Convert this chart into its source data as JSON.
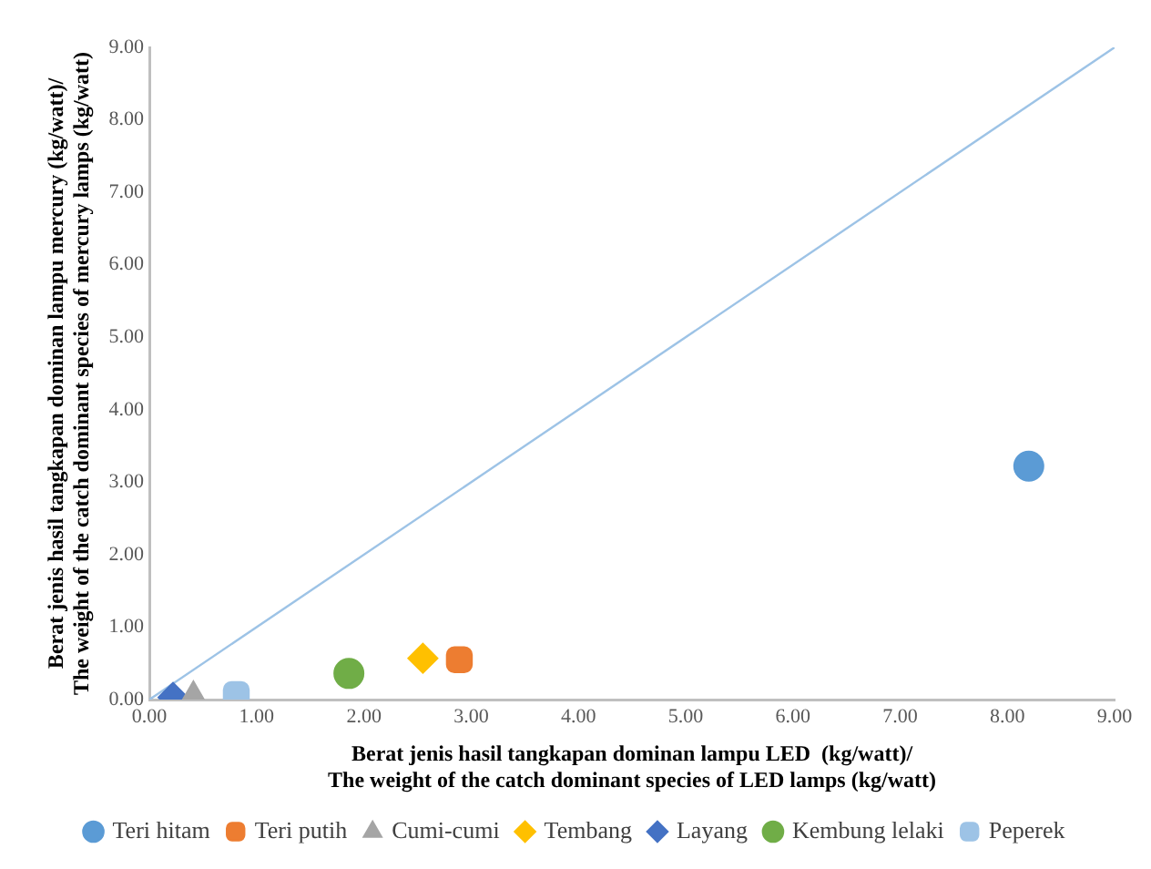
{
  "chart_data": {
    "type": "scatter",
    "xlabel": "Berat jenis hasil tangkapan dominan lampu LED  (kg/watt)/\nThe weight of the catch dominant species of LED lamps (kg/watt)",
    "ylabel": "Berat jenis hasil tangkapan dominan lampu mercury (kg/watt)/\nThe weight of the catch dominant species of mercury lamps (kg/watt)",
    "xlim": [
      0,
      9
    ],
    "ylim": [
      0,
      9
    ],
    "xticks": [
      {
        "value": 0,
        "label": "0.00"
      },
      {
        "value": 1,
        "label": "1.00"
      },
      {
        "value": 2,
        "label": "2.00"
      },
      {
        "value": 3,
        "label": "3.00"
      },
      {
        "value": 4,
        "label": "4.00"
      },
      {
        "value": 5,
        "label": "5.00"
      },
      {
        "value": 6,
        "label": "6.00"
      },
      {
        "value": 7,
        "label": "7.00"
      },
      {
        "value": 8,
        "label": "8.00"
      },
      {
        "value": 9,
        "label": "9.00"
      }
    ],
    "yticks": [
      {
        "value": 0,
        "label": "0.00"
      },
      {
        "value": 1,
        "label": "1.00"
      },
      {
        "value": 2,
        "label": "2.00"
      },
      {
        "value": 3,
        "label": "3.00"
      },
      {
        "value": 4,
        "label": "4.00"
      },
      {
        "value": 5,
        "label": "5.00"
      },
      {
        "value": 6,
        "label": "6.00"
      },
      {
        "value": 7,
        "label": "7.00"
      },
      {
        "value": 8,
        "label": "8.00"
      },
      {
        "value": 9,
        "label": "9.00"
      }
    ],
    "grid": false,
    "legend": "bottom",
    "series": [
      {
        "name": "Teri hitam",
        "color": "#5b9bd5",
        "marker": "circle",
        "x": [
          8.2
        ],
        "values": [
          3.22
        ]
      },
      {
        "name": "Teri putih",
        "color": "#ed7d31",
        "marker": "square",
        "x": [
          2.89
        ],
        "values": [
          0.55
        ]
      },
      {
        "name": "Cumi-cumi",
        "color": "#a5a5a5",
        "marker": "triangle",
        "x": [
          0.41
        ],
        "values": [
          0.05
        ]
      },
      {
        "name": "Tembang",
        "color": "#ffc000",
        "marker": "diamond",
        "x": [
          2.55
        ],
        "values": [
          0.57
        ]
      },
      {
        "name": "Layang",
        "color": "#4472c4",
        "marker": "diamond",
        "x": [
          0.22
        ],
        "values": [
          0.03
        ]
      },
      {
        "name": "Kembung lelaki",
        "color": "#70ad47",
        "marker": "circle",
        "x": [
          1.86
        ],
        "values": [
          0.36
        ]
      },
      {
        "name": "Peperek",
        "color": "#9dc3e6",
        "marker": "square",
        "x": [
          0.81
        ],
        "values": [
          0.07
        ]
      },
      {
        "type": "line",
        "color": "#9dc3e6",
        "marker": "none",
        "x": [
          0,
          9
        ],
        "values": [
          0,
          9
        ]
      }
    ]
  }
}
